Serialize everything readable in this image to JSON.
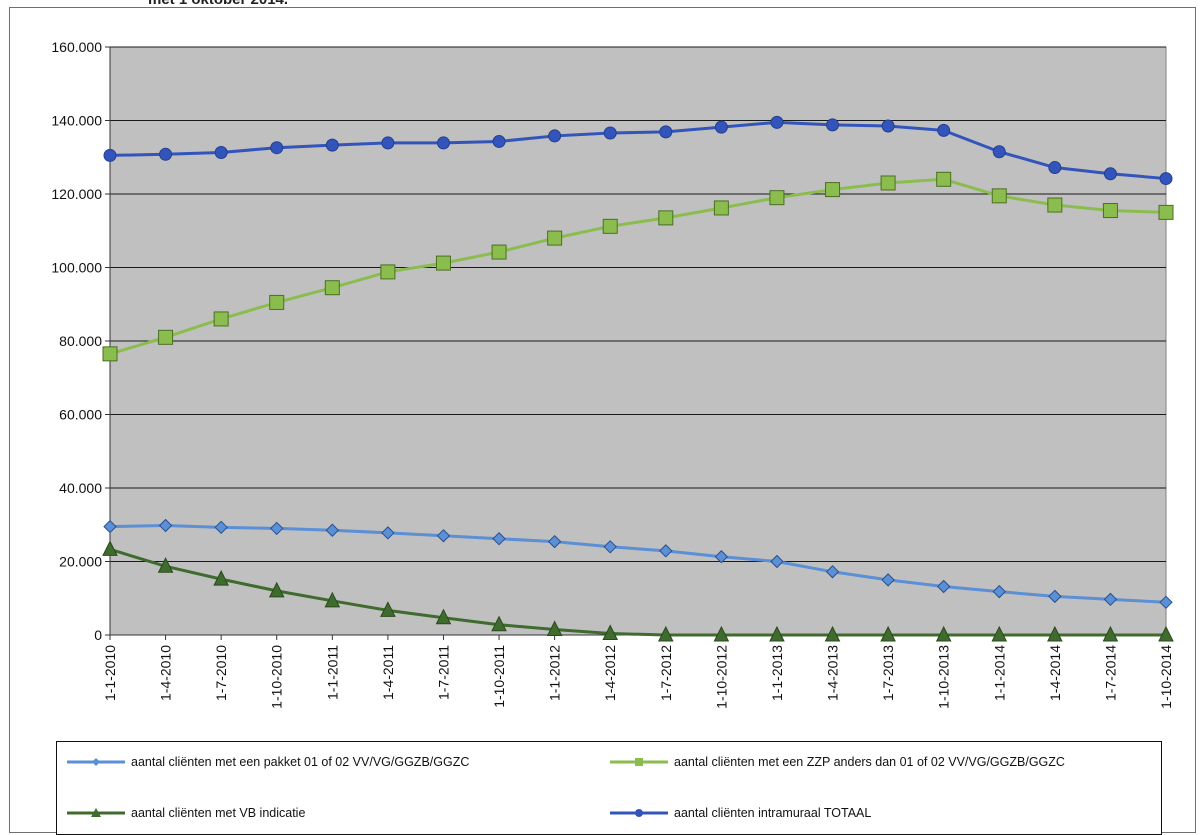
{
  "caption": "met 1 oktober 2014.",
  "chart_data": {
    "type": "line",
    "categories": [
      "1-1-2010",
      "1-4-2010",
      "1-7-2010",
      "1-10-2010",
      "1-1-2011",
      "1-4-2011",
      "1-7-2011",
      "1-10-2011",
      "1-1-2012",
      "1-4-2012",
      "1-7-2012",
      "1-10-2012",
      "1-1-2013",
      "1-4-2013",
      "1-7-2013",
      "1-10-2013",
      "1-1-2014",
      "1-4-2014",
      "1-7-2014",
      "1-10-2014"
    ],
    "yticks": [
      "0",
      "20.000",
      "40.000",
      "60.000",
      "80.000",
      "100.000",
      "120.000",
      "140.000",
      "160.000"
    ],
    "ylim": [
      0,
      160000
    ],
    "grid": true,
    "plot_background": "#c0c0c0",
    "legend_position": "bottom",
    "series": [
      {
        "name": "aantal cliënten met een pakket 01 of 02 VV/VG/GGZB/GGZC",
        "color": "#5b8fd6",
        "marker": "diamond",
        "values": [
          29500,
          29800,
          29300,
          29000,
          28500,
          27800,
          27000,
          26200,
          25400,
          24000,
          22900,
          21300,
          20000,
          17200,
          15000,
          13200,
          11800,
          10500,
          9700,
          8900
        ]
      },
      {
        "name": "aantal cliënten met een ZZP anders dan 01 of 02 VV/VG/GGZB/GGZC",
        "color": "#8bbd4e",
        "marker": "square",
        "values": [
          76500,
          81000,
          86000,
          90500,
          94500,
          98800,
          101200,
          104200,
          108000,
          111200,
          113500,
          116200,
          119000,
          121200,
          123000,
          124000,
          119500,
          117000,
          115500,
          115000
        ]
      },
      {
        "name": "aantal cliënten met VB indicatie",
        "color": "#3f6b2e",
        "marker": "triangle",
        "values": [
          23300,
          18700,
          15200,
          12000,
          9300,
          6700,
          4700,
          2800,
          1500,
          400,
          0,
          0,
          0,
          0,
          0,
          0,
          0,
          0,
          0,
          0
        ]
      },
      {
        "name": "aantal cliënten intramuraal TOTAAL",
        "color": "#3355bb",
        "marker": "circle",
        "values": [
          130500,
          130800,
          131300,
          132600,
          133300,
          133900,
          133900,
          134300,
          135800,
          136600,
          136900,
          138200,
          139500,
          138800,
          138500,
          137300,
          131500,
          127200,
          125500,
          124200
        ]
      }
    ]
  }
}
